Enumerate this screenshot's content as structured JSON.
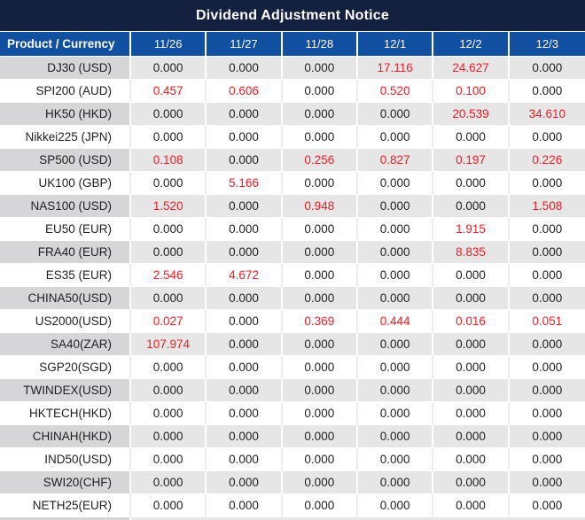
{
  "title": "Dividend Adjustment Notice",
  "colors": {
    "title_bar_bg": "#132040",
    "header_row_bg": "#114fa0",
    "header_text": "#ffffff",
    "stripe_product_col_bg": "#d6d6d8",
    "stripe_data_bg": "#e6e6e6",
    "value_text": "#1f1f1f",
    "highlight_red": "#ee1c25"
  },
  "table": {
    "product_header": "Product / Currency",
    "date_headers": [
      "11/26",
      "11/27",
      "11/28",
      "12/1",
      "12/2",
      "12/3"
    ],
    "rows": [
      {
        "product": "DJ30 (USD)",
        "cells": [
          {
            "text": "0.000",
            "red": false
          },
          {
            "text": "0.000",
            "red": false
          },
          {
            "text": "0.000",
            "red": false
          },
          {
            "text": "17.116",
            "red": true
          },
          {
            "text": "24.627",
            "red": true
          },
          {
            "text": "0.000",
            "red": false
          }
        ]
      },
      {
        "product": "SPI200 (AUD)",
        "cells": [
          {
            "text": "0.457",
            "red": true
          },
          {
            "text": "0.606",
            "red": true
          },
          {
            "text": "0.000",
            "red": false
          },
          {
            "text": "0.520",
            "red": true
          },
          {
            "text": "0.100",
            "red": true
          },
          {
            "text": "0.000",
            "red": false
          }
        ]
      },
      {
        "product": "HK50 (HKD)",
        "cells": [
          {
            "text": "0.000",
            "red": false
          },
          {
            "text": "0.000",
            "red": false
          },
          {
            "text": "0.000",
            "red": false
          },
          {
            "text": "0.000",
            "red": false
          },
          {
            "text": "20.539",
            "red": true
          },
          {
            "text": "34.610",
            "red": true
          }
        ]
      },
      {
        "product": "Nikkei225 (JPN)",
        "cells": [
          {
            "text": "0.000",
            "red": false
          },
          {
            "text": "0.000",
            "red": false
          },
          {
            "text": "0.000",
            "red": false
          },
          {
            "text": "0.000",
            "red": false
          },
          {
            "text": "0.000",
            "red": false
          },
          {
            "text": "0.000",
            "red": false
          }
        ]
      },
      {
        "product": "SP500 (USD)",
        "cells": [
          {
            "text": "0.108",
            "red": true
          },
          {
            "text": "0.000",
            "red": false
          },
          {
            "text": "0.256",
            "red": true
          },
          {
            "text": "0.827",
            "red": true
          },
          {
            "text": "0.197",
            "red": true
          },
          {
            "text": "0.226",
            "red": true
          }
        ]
      },
      {
        "product": "UK100 (GBP)",
        "cells": [
          {
            "text": "0.000",
            "red": false
          },
          {
            "text": "5.166",
            "red": true
          },
          {
            "text": "0.000",
            "red": false
          },
          {
            "text": "0.000",
            "red": false
          },
          {
            "text": "0.000",
            "red": false
          },
          {
            "text": "0.000",
            "red": false
          }
        ]
      },
      {
        "product": "NAS100 (USD)",
        "cells": [
          {
            "text": "1.520",
            "red": true
          },
          {
            "text": "0.000",
            "red": false
          },
          {
            "text": "0.948",
            "red": true
          },
          {
            "text": "0.000",
            "red": false
          },
          {
            "text": "0.000",
            "red": false
          },
          {
            "text": "1.508",
            "red": true
          }
        ]
      },
      {
        "product": "EU50 (EUR)",
        "cells": [
          {
            "text": "0.000",
            "red": false
          },
          {
            "text": "0.000",
            "red": false
          },
          {
            "text": "0.000",
            "red": false
          },
          {
            "text": "0.000",
            "red": false
          },
          {
            "text": "1.915",
            "red": true
          },
          {
            "text": "0.000",
            "red": false
          }
        ]
      },
      {
        "product": "FRA40 (EUR)",
        "cells": [
          {
            "text": "0.000",
            "red": false
          },
          {
            "text": "0.000",
            "red": false
          },
          {
            "text": "0.000",
            "red": false
          },
          {
            "text": "0.000",
            "red": false
          },
          {
            "text": "8.835",
            "red": true
          },
          {
            "text": "0.000",
            "red": false
          }
        ]
      },
      {
        "product": "ES35 (EUR)",
        "cells": [
          {
            "text": "2.546",
            "red": true
          },
          {
            "text": "4.672",
            "red": true
          },
          {
            "text": "0.000",
            "red": false
          },
          {
            "text": "0.000",
            "red": false
          },
          {
            "text": "0.000",
            "red": false
          },
          {
            "text": "0.000",
            "red": false
          }
        ]
      },
      {
        "product": "CHINA50(USD)",
        "cells": [
          {
            "text": "0.000",
            "red": false
          },
          {
            "text": "0.000",
            "red": false
          },
          {
            "text": "0.000",
            "red": false
          },
          {
            "text": "0.000",
            "red": false
          },
          {
            "text": "0.000",
            "red": false
          },
          {
            "text": "0.000",
            "red": false
          }
        ]
      },
      {
        "product": "US2000(USD)",
        "cells": [
          {
            "text": "0.027",
            "red": true
          },
          {
            "text": "0.000",
            "red": false
          },
          {
            "text": "0.369",
            "red": true
          },
          {
            "text": "0.444",
            "red": true
          },
          {
            "text": "0.016",
            "red": true
          },
          {
            "text": "0.051",
            "red": true
          }
        ]
      },
      {
        "product": "SA40(ZAR)",
        "cells": [
          {
            "text": "107.974",
            "red": true
          },
          {
            "text": "0.000",
            "red": false
          },
          {
            "text": "0.000",
            "red": false
          },
          {
            "text": "0.000",
            "red": false
          },
          {
            "text": "0.000",
            "red": false
          },
          {
            "text": "0.000",
            "red": false
          }
        ]
      },
      {
        "product": "SGP20(SGD)",
        "cells": [
          {
            "text": "0.000",
            "red": false
          },
          {
            "text": "0.000",
            "red": false
          },
          {
            "text": "0.000",
            "red": false
          },
          {
            "text": "0.000",
            "red": false
          },
          {
            "text": "0.000",
            "red": false
          },
          {
            "text": "0.000",
            "red": false
          }
        ]
      },
      {
        "product": "TWINDEX(USD)",
        "cells": [
          {
            "text": "0.000",
            "red": false
          },
          {
            "text": "0.000",
            "red": false
          },
          {
            "text": "0.000",
            "red": false
          },
          {
            "text": "0.000",
            "red": false
          },
          {
            "text": "0.000",
            "red": false
          },
          {
            "text": "0.000",
            "red": false
          }
        ]
      },
      {
        "product": "HKTECH(HKD)",
        "cells": [
          {
            "text": "0.000",
            "red": false
          },
          {
            "text": "0.000",
            "red": false
          },
          {
            "text": "0.000",
            "red": false
          },
          {
            "text": "0.000",
            "red": false
          },
          {
            "text": "0.000",
            "red": false
          },
          {
            "text": "0.000",
            "red": false
          }
        ]
      },
      {
        "product": "CHINAH(HKD)",
        "cells": [
          {
            "text": "0.000",
            "red": false
          },
          {
            "text": "0.000",
            "red": false
          },
          {
            "text": "0.000",
            "red": false
          },
          {
            "text": "0.000",
            "red": false
          },
          {
            "text": "0.000",
            "red": false
          },
          {
            "text": "0.000",
            "red": false
          }
        ]
      },
      {
        "product": "IND50(USD)",
        "cells": [
          {
            "text": "0.000",
            "red": false
          },
          {
            "text": "0.000",
            "red": false
          },
          {
            "text": "0.000",
            "red": false
          },
          {
            "text": "0.000",
            "red": false
          },
          {
            "text": "0.000",
            "red": false
          },
          {
            "text": "0.000",
            "red": false
          }
        ]
      },
      {
        "product": "SWI20(CHF)",
        "cells": [
          {
            "text": "0.000",
            "red": false
          },
          {
            "text": "0.000",
            "red": false
          },
          {
            "text": "0.000",
            "red": false
          },
          {
            "text": "0.000",
            "red": false
          },
          {
            "text": "0.000",
            "red": false
          },
          {
            "text": "0.000",
            "red": false
          }
        ]
      },
      {
        "product": "NETH25(EUR)",
        "cells": [
          {
            "text": "0.000",
            "red": false
          },
          {
            "text": "0.000",
            "red": false
          },
          {
            "text": "0.000",
            "red": false
          },
          {
            "text": "0.000",
            "red": false
          },
          {
            "text": "0.000",
            "red": false
          },
          {
            "text": "0.000",
            "red": false
          }
        ]
      }
    ]
  }
}
